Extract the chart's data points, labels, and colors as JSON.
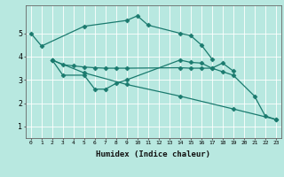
{
  "background_color": "#b8e8e0",
  "grid_color": "#d0f0e8",
  "line_color": "#1a7a6e",
  "xlabel": "Humidex (Indice chaleur)",
  "xlim": [
    -0.5,
    23.5
  ],
  "ylim": [
    0.5,
    6.2
  ],
  "xticks": [
    0,
    1,
    2,
    3,
    4,
    5,
    6,
    7,
    8,
    9,
    10,
    11,
    12,
    13,
    14,
    15,
    16,
    17,
    18,
    19,
    20,
    21,
    22,
    23
  ],
  "yticks": [
    1,
    2,
    3,
    4,
    5
  ],
  "figsize": [
    3.2,
    2.0
  ],
  "dpi": 100,
  "lines": [
    {
      "x": [
        0,
        1,
        5,
        9,
        10,
        11,
        14,
        15,
        16,
        17
      ],
      "y": [
        5.0,
        4.45,
        5.3,
        5.55,
        5.75,
        5.35,
        5.0,
        4.9,
        4.5,
        3.9
      ]
    },
    {
      "x": [
        2,
        3,
        4,
        5,
        6,
        7,
        8,
        9,
        14,
        15,
        16,
        17,
        18,
        19
      ],
      "y": [
        3.85,
        3.65,
        3.6,
        3.55,
        3.52,
        3.5,
        3.5,
        3.5,
        3.52,
        3.5,
        3.5,
        3.5,
        3.72,
        3.38
      ]
    },
    {
      "x": [
        2,
        3,
        5,
        6,
        7,
        8,
        9,
        14,
        15,
        16,
        17,
        18,
        19,
        21,
        22,
        23
      ],
      "y": [
        3.85,
        3.2,
        3.2,
        2.6,
        2.6,
        2.85,
        3.0,
        3.85,
        3.75,
        3.72,
        3.5,
        3.35,
        3.2,
        2.3,
        1.45,
        1.3
      ]
    },
    {
      "x": [
        2,
        5,
        9,
        14,
        19,
        23
      ],
      "y": [
        3.85,
        3.3,
        2.8,
        2.3,
        1.75,
        1.3
      ]
    }
  ]
}
